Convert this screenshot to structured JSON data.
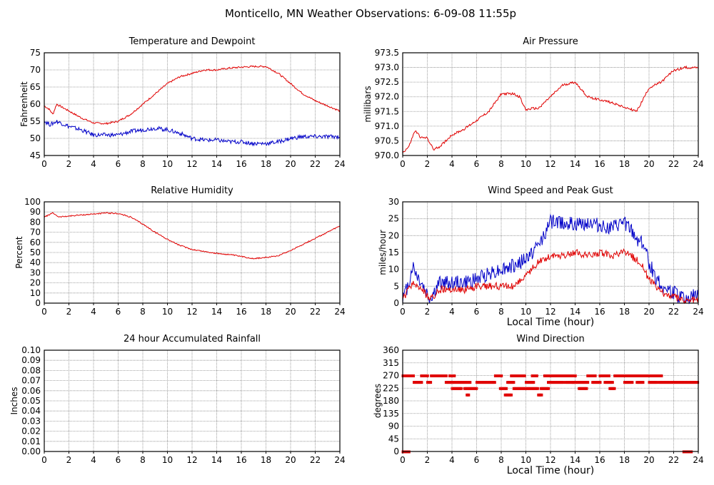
{
  "page_title": "Monticello, MN Weather Observations: 6-09-08 11:55p",
  "colors": {
    "red": "#e00000",
    "blue": "#0000c8",
    "grid": "#888888",
    "axis": "#000000"
  },
  "chart_data": [
    {
      "id": "temp",
      "type": "line",
      "title": "Temperature and Dewpoint",
      "xlabel": "",
      "ylabel": "Fahrenheit",
      "xlim": [
        0,
        24
      ],
      "ylim": [
        45,
        75
      ],
      "xticks": [
        0,
        2,
        4,
        6,
        8,
        10,
        12,
        14,
        16,
        18,
        20,
        22,
        24
      ],
      "yticks": [
        "45",
        "50",
        "55",
        "60",
        "65",
        "70",
        "75"
      ],
      "ytick_values": [
        45,
        50,
        55,
        60,
        65,
        70,
        75
      ],
      "grid": true,
      "series": [
        {
          "color": "red",
          "noise": 0.25,
          "x": [
            0,
            0.4,
            0.7,
            1.0,
            2,
            3,
            4,
            5,
            6,
            7,
            8,
            9,
            10,
            11,
            12,
            13,
            14,
            15,
            16,
            17,
            18,
            19,
            20,
            21,
            22,
            23,
            24
          ],
          "y": [
            59.5,
            58.5,
            57,
            60,
            58,
            56,
            54.5,
            54.3,
            55,
            57,
            60,
            63,
            66,
            68,
            69,
            70,
            70,
            70.5,
            70.8,
            71,
            71,
            69,
            66,
            63,
            61,
            59.5,
            58
          ]
        },
        {
          "color": "blue",
          "noise": 0.6,
          "x": [
            0,
            0.5,
            1,
            2,
            3,
            4,
            5,
            6,
            7,
            8,
            9,
            10,
            11,
            12,
            13,
            14,
            15,
            16,
            17,
            18,
            19,
            20,
            21,
            22,
            23,
            24
          ],
          "y": [
            55,
            54,
            55,
            53.5,
            52.5,
            51,
            51,
            51,
            52,
            52.5,
            53,
            52.5,
            51.5,
            50,
            49.5,
            49.5,
            49,
            49,
            48.5,
            48.5,
            49,
            50,
            50.5,
            50.5,
            50.5,
            50.5
          ]
        }
      ]
    },
    {
      "id": "pressure",
      "type": "line",
      "title": "Air Pressure",
      "xlabel": "",
      "ylabel": "millibars",
      "xlim": [
        0,
        24
      ],
      "ylim": [
        970.0,
        973.5
      ],
      "xticks": [
        0,
        2,
        4,
        6,
        8,
        10,
        12,
        14,
        16,
        18,
        20,
        22,
        24
      ],
      "yticks": [
        "970.0",
        "970.5",
        "971.0",
        "971.5",
        "972.0",
        "972.5",
        "973.0",
        "973.5"
      ],
      "ytick_values": [
        970.0,
        970.5,
        971.0,
        971.5,
        972.0,
        972.5,
        973.0,
        973.5
      ],
      "grid": true,
      "series": [
        {
          "color": "red",
          "noise": 0.04,
          "x": [
            0,
            0.5,
            1,
            1.5,
            2,
            2.5,
            3,
            3.5,
            4,
            5,
            6,
            7,
            8,
            8.5,
            9,
            9.5,
            10,
            10.5,
            11,
            12,
            13,
            14,
            15,
            16,
            17,
            18,
            19,
            20,
            21,
            22,
            23,
            24
          ],
          "y": [
            970.1,
            970.3,
            970.85,
            970.6,
            970.6,
            970.2,
            970.3,
            970.5,
            970.7,
            970.9,
            971.2,
            971.5,
            972.1,
            972.1,
            972.1,
            972.0,
            971.55,
            971.6,
            971.6,
            972.0,
            972.4,
            972.5,
            972.0,
            971.9,
            971.8,
            971.65,
            971.5,
            972.3,
            972.5,
            972.9,
            973.0,
            973.0
          ]
        }
      ]
    },
    {
      "id": "rh",
      "type": "line",
      "title": "Relative Humidity",
      "xlabel": "",
      "ylabel": "Percent",
      "xlim": [
        0,
        24
      ],
      "ylim": [
        0,
        100
      ],
      "xticks": [
        0,
        2,
        4,
        6,
        8,
        10,
        12,
        14,
        16,
        18,
        20,
        22,
        24
      ],
      "yticks": [
        "0",
        "10",
        "20",
        "30",
        "40",
        "50",
        "60",
        "70",
        "80",
        "90",
        "100"
      ],
      "ytick_values": [
        0,
        10,
        20,
        30,
        40,
        50,
        60,
        70,
        80,
        90,
        100
      ],
      "grid": true,
      "series": [
        {
          "color": "red",
          "noise": 0.6,
          "x": [
            0,
            0.7,
            1.2,
            2,
            3,
            4,
            5,
            6,
            7,
            8,
            9,
            10,
            11,
            12,
            13,
            14,
            15,
            16,
            17,
            18,
            19,
            20,
            21,
            22,
            23,
            24
          ],
          "y": [
            85,
            89,
            85,
            86,
            87,
            88,
            89,
            88.5,
            85,
            78,
            70,
            63,
            57,
            53,
            51,
            49,
            48,
            46,
            44,
            45,
            47,
            52,
            58,
            64,
            70,
            76
          ]
        }
      ]
    },
    {
      "id": "wind",
      "type": "line",
      "title": "Wind Speed and Peak Gust",
      "xlabel": "Local Time (hour)",
      "ylabel": "miles/hour",
      "xlim": [
        0,
        24
      ],
      "ylim": [
        0,
        30
      ],
      "xticks": [
        0,
        2,
        4,
        6,
        8,
        10,
        12,
        14,
        16,
        18,
        20,
        22,
        24
      ],
      "yticks": [
        "0",
        "5",
        "10",
        "15",
        "20",
        "25",
        "30"
      ],
      "ytick_values": [
        0,
        5,
        10,
        15,
        20,
        25,
        30
      ],
      "grid": true,
      "series": [
        {
          "color": "blue",
          "noise": 2.2,
          "x": [
            0,
            0.5,
            0.8,
            1.2,
            1.8,
            2.2,
            3,
            4,
            5,
            6,
            7,
            8,
            9,
            10,
            10.5,
            11,
            12,
            13,
            14,
            15,
            16,
            17,
            18,
            19,
            19.5,
            20,
            20.5,
            21,
            22,
            23,
            23.5,
            24
          ],
          "y": [
            1,
            6,
            11,
            8,
            4,
            1,
            6,
            6,
            6,
            7,
            9,
            10,
            11,
            13,
            15,
            17,
            24,
            24,
            23,
            24,
            23,
            22,
            24,
            19,
            18,
            12,
            8,
            5,
            3,
            1,
            2,
            2
          ]
        },
        {
          "color": "red",
          "noise": 1.1,
          "x": [
            0,
            0.5,
            0.8,
            1.2,
            1.8,
            2.2,
            3,
            4,
            5,
            6,
            7,
            8,
            9,
            10,
            10.5,
            11,
            12,
            13,
            14,
            15,
            16,
            17,
            18,
            19,
            19.5,
            20,
            20.5,
            21,
            22,
            23,
            23.5,
            24
          ],
          "y": [
            1,
            4,
            6,
            5,
            3,
            1,
            4,
            4,
            4,
            5,
            5,
            5,
            5,
            8,
            10,
            12,
            14,
            14,
            15,
            14,
            15,
            14,
            15,
            13,
            11,
            7,
            5,
            3,
            2,
            0.5,
            1,
            1
          ]
        }
      ]
    },
    {
      "id": "rain",
      "type": "line",
      "title": "24 hour Accumulated Rainfall",
      "xlabel": "",
      "ylabel": "Inches",
      "xlim": [
        0,
        24
      ],
      "ylim": [
        0,
        0.1
      ],
      "xticks": [
        0,
        2,
        4,
        6,
        8,
        10,
        12,
        14,
        16,
        18,
        20,
        22,
        24
      ],
      "yticks": [
        "0.00",
        "0.01",
        "0.02",
        "0.03",
        "0.04",
        "0.05",
        "0.06",
        "0.07",
        "0.08",
        "0.09",
        "0.10"
      ],
      "ytick_values": [
        0,
        0.01,
        0.02,
        0.03,
        0.04,
        0.05,
        0.06,
        0.07,
        0.08,
        0.09,
        0.1
      ],
      "grid": true,
      "series": [
        {
          "color": "red",
          "noise": 0,
          "x": [
            0,
            24
          ],
          "y": [
            0,
            0
          ]
        }
      ]
    },
    {
      "id": "winddir",
      "type": "scatter",
      "title": "Wind Direction",
      "xlabel": "Local Time (hour)",
      "ylabel": "degrees",
      "xlim": [
        0,
        24
      ],
      "ylim": [
        0,
        360
      ],
      "xticks": [
        0,
        2,
        4,
        6,
        8,
        10,
        12,
        14,
        16,
        18,
        20,
        22,
        24
      ],
      "yticks": [
        "0",
        "45",
        "90",
        "135",
        "180",
        "225",
        "270",
        "315",
        "360"
      ],
      "ytick_values": [
        0,
        45,
        90,
        135,
        180,
        225,
        270,
        315,
        360
      ],
      "grid": true,
      "series": [
        {
          "color": "red",
          "segments": [
            [
              0.0,
              0.5,
              0
            ],
            [
              0.0,
              0.9,
              270
            ],
            [
              0.9,
              1.5,
              247
            ],
            [
              1.5,
              2.0,
              270
            ],
            [
              2.0,
              2.3,
              247
            ],
            [
              2.3,
              3.5,
              270
            ],
            [
              3.5,
              4.0,
              247
            ],
            [
              3.8,
              4.2,
              270
            ],
            [
              4.0,
              5.5,
              247
            ],
            [
              4.0,
              4.8,
              225
            ],
            [
              5.2,
              5.4,
              202
            ],
            [
              5.0,
              6.0,
              225
            ],
            [
              6.0,
              7.5,
              247
            ],
            [
              7.5,
              8.0,
              270
            ],
            [
              7.9,
              8.4,
              225
            ],
            [
              8.3,
              8.8,
              202
            ],
            [
              8.5,
              9.0,
              247
            ],
            [
              8.8,
              9.3,
              270
            ],
            [
              9.0,
              11.0,
              225
            ],
            [
              9.5,
              9.9,
              270
            ],
            [
              10.0,
              10.7,
              247
            ],
            [
              10.5,
              10.9,
              270
            ],
            [
              11.0,
              11.3,
              202
            ],
            [
              11.2,
              11.8,
              225
            ],
            [
              11.5,
              13.5,
              270
            ],
            [
              11.8,
              13.0,
              247
            ],
            [
              13.2,
              13.8,
              247
            ],
            [
              13.5,
              14.0,
              270
            ],
            [
              13.8,
              15.0,
              247
            ],
            [
              14.3,
              14.9,
              225
            ],
            [
              15.0,
              15.6,
              270
            ],
            [
              15.4,
              16.0,
              247
            ],
            [
              16.0,
              16.8,
              270
            ],
            [
              16.4,
              17.0,
              247
            ],
            [
              16.8,
              17.2,
              225
            ],
            [
              17.2,
              17.5,
              270
            ],
            [
              17.5,
              21.0,
              270
            ],
            [
              18.0,
              18.6,
              247
            ],
            [
              19.0,
              19.5,
              247
            ],
            [
              20.0,
              20.6,
              247
            ],
            [
              20.8,
              24.0,
              247
            ],
            [
              22.8,
              23.5,
              0
            ]
          ]
        }
      ]
    }
  ]
}
